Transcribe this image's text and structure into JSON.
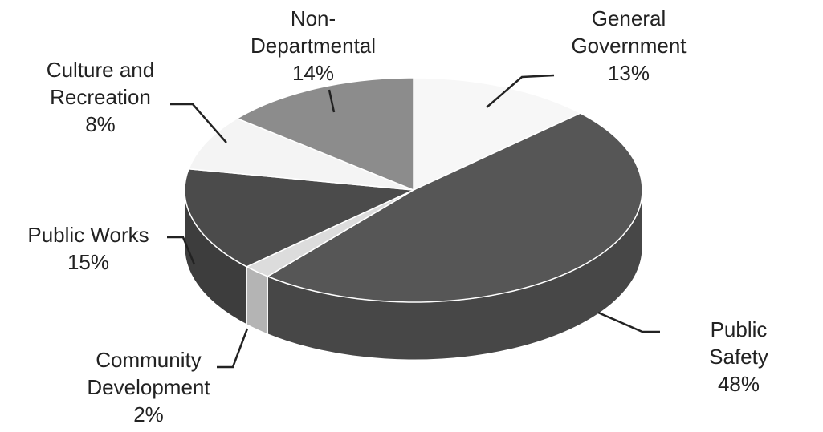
{
  "chart_data": {
    "type": "pie",
    "categories": [
      "General\nGovernment",
      "Public Safety",
      "Community\nDevelopment",
      "Public Works",
      "Culture and\nRecreation",
      "Non-\nDepartmental"
    ],
    "values": [
      13,
      48,
      2,
      15,
      8,
      14
    ],
    "value_labels": [
      "13%",
      "48%",
      "2%",
      "15%",
      "8%",
      "14%"
    ],
    "colors": [
      "#f7f7f7",
      "#565656",
      "#dcdcdc",
      "#4b4b4b",
      "#f4f4f4",
      "#8c8c8c"
    ],
    "three_d": true
  }
}
